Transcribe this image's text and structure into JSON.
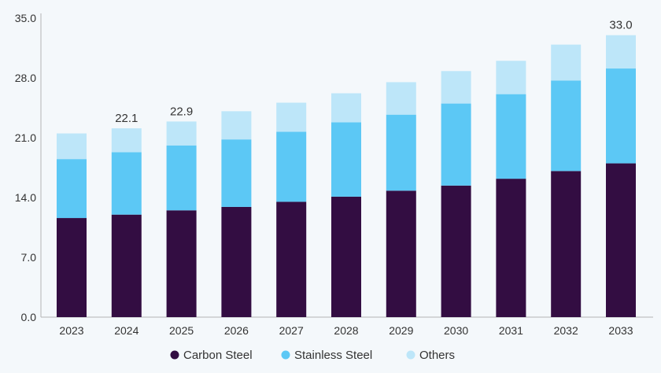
{
  "chart_data": {
    "type": "bar",
    "stacked": true,
    "title": "",
    "xlabel": "",
    "ylabel": "",
    "ylim": [
      0,
      35
    ],
    "yticks": [
      "0.0",
      "7.0",
      "14.0",
      "21.0",
      "28.0",
      "35.0"
    ],
    "ytick_values": [
      0,
      7,
      14,
      21,
      28,
      35
    ],
    "categories": [
      "2023",
      "2024",
      "2025",
      "2026",
      "2027",
      "2028",
      "2029",
      "2030",
      "2031",
      "2032",
      "2033"
    ],
    "series": [
      {
        "name": "Carbon Steel",
        "color": "#330d42",
        "values": [
          11.6,
          12.0,
          12.5,
          12.9,
          13.5,
          14.1,
          14.8,
          15.4,
          16.2,
          17.1,
          18.0
        ]
      },
      {
        "name": "Stainless Steel",
        "color": "#5cc8f5",
        "values": [
          6.9,
          7.3,
          7.6,
          7.9,
          8.2,
          8.7,
          8.9,
          9.6,
          9.9,
          10.6,
          11.1
        ]
      },
      {
        "name": "Others",
        "color": "#bde6f9",
        "values": [
          3.0,
          2.8,
          2.8,
          3.3,
          3.4,
          3.4,
          3.8,
          3.8,
          3.9,
          4.2,
          3.9
        ]
      }
    ],
    "data_labels": [
      {
        "category": "2024",
        "text": "22.1"
      },
      {
        "category": "2025",
        "text": "22.9"
      },
      {
        "category": "2033",
        "text": "33.0"
      }
    ],
    "legend_position": "bottom",
    "grid": false
  }
}
